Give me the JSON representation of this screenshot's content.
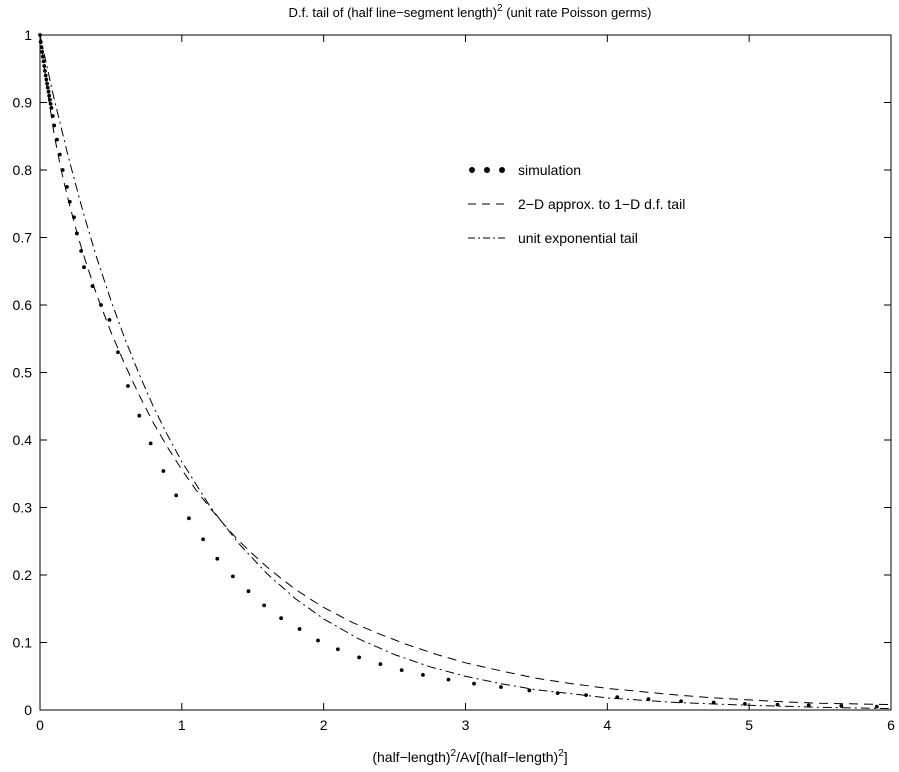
{
  "chart_data": {
    "type": "line",
    "title": "D.f. tail of (half line−segment length)",
    "title_sup": "2",
    "title_suffix": " (unit rate Poisson germs)",
    "xlabel": {
      "parts": [
        {
          "text": "(half−length)",
          "sup": false
        },
        {
          "text": "2",
          "sup": true
        },
        {
          "text": "/Av[(half−length)",
          "sup": false
        },
        {
          "text": "2",
          "sup": true
        },
        {
          "text": "]",
          "sup": false
        }
      ]
    },
    "ylabel": "",
    "xlim": [
      0,
      6
    ],
    "ylim": [
      0,
      1
    ],
    "xticks": [
      "0",
      "1",
      "2",
      "3",
      "4",
      "5",
      "6"
    ],
    "yticks": [
      "0",
      "0.1",
      "0.2",
      "0.3",
      "0.4",
      "0.5",
      "0.6",
      "0.7",
      "0.8",
      "0.9",
      "1"
    ],
    "grid": false,
    "legend_position": "upper-right",
    "series": [
      {
        "name": "simulation",
        "legend_symbol": "• • •",
        "style": "dots",
        "x": [
          0.0,
          0.005,
          0.01,
          0.015,
          0.02,
          0.025,
          0.03,
          0.035,
          0.04,
          0.045,
          0.05,
          0.055,
          0.06,
          0.065,
          0.07,
          0.075,
          0.08,
          0.09,
          0.1,
          0.12,
          0.14,
          0.16,
          0.19,
          0.21,
          0.24,
          0.26,
          0.29,
          0.31,
          0.37,
          0.43,
          0.49,
          0.55,
          0.62,
          0.7,
          0.78,
          0.87,
          0.96,
          1.05,
          1.15,
          1.25,
          1.36,
          1.47,
          1.58,
          1.7,
          1.83,
          1.96,
          2.1,
          2.25,
          2.4,
          2.55,
          2.7,
          2.88,
          3.06,
          3.25,
          3.45,
          3.65,
          3.85,
          4.07,
          4.29,
          4.52,
          4.75,
          4.97,
          5.2,
          5.42,
          5.65,
          5.9
        ],
        "values": [
          1.0,
          0.99,
          0.982,
          0.975,
          0.968,
          0.961,
          0.954,
          0.947,
          0.94,
          0.934,
          0.928,
          0.922,
          0.916,
          0.91,
          0.904,
          0.898,
          0.892,
          0.88,
          0.866,
          0.845,
          0.823,
          0.8,
          0.775,
          0.753,
          0.73,
          0.706,
          0.68,
          0.656,
          0.628,
          0.6,
          0.578,
          0.53,
          0.48,
          0.436,
          0.395,
          0.354,
          0.318,
          0.284,
          0.253,
          0.224,
          0.198,
          0.176,
          0.155,
          0.136,
          0.12,
          0.103,
          0.09,
          0.078,
          0.068,
          0.059,
          0.052,
          0.045,
          0.039,
          0.034,
          0.029,
          0.025,
          0.022,
          0.019,
          0.016,
          0.013,
          0.011,
          0.009,
          0.008,
          0.007,
          0.006,
          0.005
        ]
      },
      {
        "name": "2−D approx. to 1−D d.f. tail",
        "legend_symbol": "− − −",
        "style": "dashed",
        "x": [
          0.0,
          0.05,
          0.1,
          0.15,
          0.2,
          0.25,
          0.3,
          0.4,
          0.5,
          0.6,
          0.7,
          0.8,
          0.9,
          1.0,
          1.1,
          1.2,
          1.3,
          1.4,
          1.5,
          1.6,
          1.7,
          1.8,
          1.9,
          2.0,
          2.2,
          2.4,
          2.6,
          2.8,
          3.0,
          3.25,
          3.5,
          3.75,
          4.0,
          4.25,
          4.5,
          4.75,
          5.0,
          5.25,
          5.5,
          5.75,
          6.0
        ],
        "values": [
          1.0,
          0.921,
          0.852,
          0.799,
          0.755,
          0.715,
          0.679,
          0.615,
          0.56,
          0.511,
          0.466,
          0.425,
          0.389,
          0.356,
          0.326,
          0.299,
          0.274,
          0.251,
          0.231,
          0.212,
          0.195,
          0.179,
          0.165,
          0.152,
          0.13,
          0.112,
          0.096,
          0.082,
          0.07,
          0.058,
          0.047,
          0.039,
          0.032,
          0.027,
          0.022,
          0.018,
          0.015,
          0.012,
          0.01,
          0.009,
          0.008
        ]
      },
      {
        "name": "unit exponential tail",
        "legend_symbol": "−.−.−",
        "style": "dashdot",
        "x": [
          0.0,
          0.1,
          0.2,
          0.3,
          0.4,
          0.5,
          0.6,
          0.7,
          0.8,
          0.9,
          1.0,
          1.2,
          1.4,
          1.6,
          1.8,
          2.0,
          2.25,
          2.5,
          2.75,
          3.0,
          3.25,
          3.5,
          3.75,
          4.0,
          4.5,
          5.0,
          5.5,
          6.0
        ],
        "values": [
          1.0,
          0.905,
          0.819,
          0.741,
          0.67,
          0.607,
          0.549,
          0.497,
          0.449,
          0.407,
          0.368,
          0.301,
          0.247,
          0.202,
          0.165,
          0.135,
          0.105,
          0.082,
          0.064,
          0.05,
          0.039,
          0.03,
          0.024,
          0.018,
          0.011,
          0.007,
          0.004,
          0.002
        ]
      }
    ]
  }
}
